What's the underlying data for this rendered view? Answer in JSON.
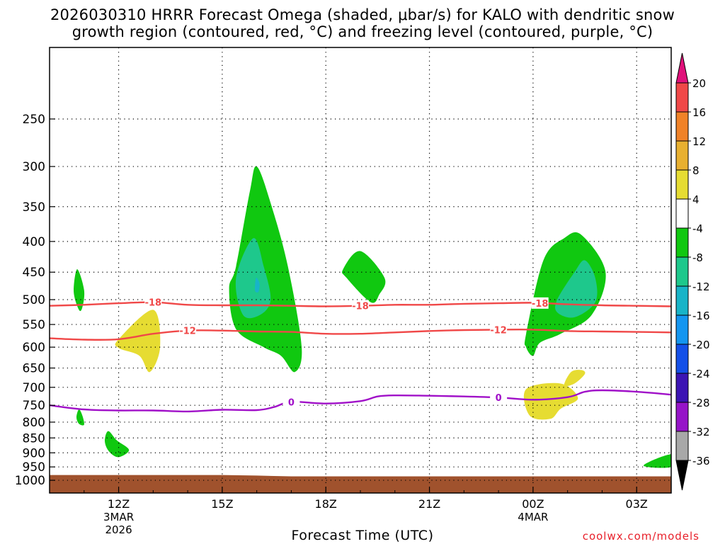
{
  "title": {
    "line1": "2026030310 HRRR Forecast Omega (shaded, μbar/s) for KALO with dendritic snow",
    "line2": "growth region (contoured, red, °C) and freezing level (contoured, purple, °C)"
  },
  "credit": "coolwx.com/models",
  "chart_data": {
    "type": "area",
    "title": "2026030310 HRRR Forecast Omega (shaded, μbar/s) for KALO with dendritic snow growth region (contoured, red, °C) and freezing level (contoured, purple, °C)",
    "xlabel": "Forecast Time (UTC)",
    "ylabel": "",
    "x_unit": "hours since 2026-03-03 10Z",
    "xlim": [
      0,
      18
    ],
    "y_scale": "log",
    "ylim": [
      1050,
      190
    ],
    "grid": true,
    "x_ticks": [
      {
        "hour": 2,
        "label": "12Z",
        "sub1": "3MAR",
        "sub2": "2026"
      },
      {
        "hour": 5,
        "label": "15Z",
        "sub1": "",
        "sub2": ""
      },
      {
        "hour": 8,
        "label": "18Z",
        "sub1": "",
        "sub2": ""
      },
      {
        "hour": 11,
        "label": "21Z",
        "sub1": "",
        "sub2": ""
      },
      {
        "hour": 14,
        "label": "00Z",
        "sub1": "4MAR",
        "sub2": ""
      },
      {
        "hour": 17,
        "label": "03Z",
        "sub1": "",
        "sub2": ""
      }
    ],
    "y_ticks": [
      250,
      300,
      350,
      400,
      450,
      500,
      550,
      600,
      650,
      700,
      750,
      800,
      850,
      900,
      950,
      1000
    ],
    "colorbar": {
      "labels": [
        "20",
        "16",
        "12",
        "8",
        "4",
        "-4",
        "-8",
        "-12",
        "-16",
        "-20",
        "-24",
        "-28",
        "-32",
        "-36"
      ],
      "bins": [
        {
          "lo": 20,
          "hi": null,
          "color": "#e0107a"
        },
        {
          "lo": 16,
          "hi": 20,
          "color": "#f04848"
        },
        {
          "lo": 12,
          "hi": 16,
          "color": "#f08228"
        },
        {
          "lo": 8,
          "hi": 12,
          "color": "#e8b030"
        },
        {
          "lo": 4,
          "hi": 8,
          "color": "#e6dc32"
        },
        {
          "lo": -4,
          "hi": 4,
          "color": "#ffffff"
        },
        {
          "lo": -8,
          "hi": -4,
          "color": "#10c810"
        },
        {
          "lo": -12,
          "hi": -8,
          "color": "#1ec88c"
        },
        {
          "lo": -16,
          "hi": -12,
          "color": "#18b4c8"
        },
        {
          "lo": -20,
          "hi": -16,
          "color": "#1496f0"
        },
        {
          "lo": -24,
          "hi": -20,
          "color": "#1450e8"
        },
        {
          "lo": -28,
          "hi": -24,
          "color": "#3c14b4"
        },
        {
          "lo": -32,
          "hi": -28,
          "color": "#9614c8"
        },
        {
          "lo": -36,
          "hi": -32,
          "color": "#a8a8a8"
        },
        {
          "lo": null,
          "hi": -36,
          "color": "#000000"
        }
      ]
    },
    "series": [
      {
        "kind": "contour",
        "label": "-18",
        "color": "#f04848",
        "points": [
          [
            0,
            512
          ],
          [
            1,
            510
          ],
          [
            2,
            507
          ],
          [
            3,
            505
          ],
          [
            4,
            510
          ],
          [
            5,
            511
          ],
          [
            6,
            511
          ],
          [
            7,
            512
          ],
          [
            8,
            513
          ],
          [
            9,
            512
          ],
          [
            10,
            510
          ],
          [
            11,
            510
          ],
          [
            12,
            508
          ],
          [
            13,
            507
          ],
          [
            14,
            506
          ],
          [
            15,
            509
          ],
          [
            16,
            511
          ],
          [
            17,
            512
          ],
          [
            18,
            513
          ]
        ],
        "label_hours": [
          3,
          9,
          14.2
        ]
      },
      {
        "kind": "contour",
        "label": "-12",
        "color": "#f04848",
        "points": [
          [
            0,
            580
          ],
          [
            1,
            583
          ],
          [
            2,
            582
          ],
          [
            3,
            570
          ],
          [
            4,
            563
          ],
          [
            5,
            563
          ],
          [
            6,
            565
          ],
          [
            7,
            566
          ],
          [
            8,
            570
          ],
          [
            9,
            570
          ],
          [
            10,
            567
          ],
          [
            11,
            564
          ],
          [
            12,
            562
          ],
          [
            13,
            561
          ],
          [
            14,
            561
          ],
          [
            15,
            564
          ],
          [
            16,
            565
          ],
          [
            17,
            566
          ],
          [
            18,
            567
          ]
        ],
        "label_hours": [
          4,
          13
        ]
      },
      {
        "kind": "contour",
        "label": "0",
        "color": "#a010c8",
        "points": [
          [
            0,
            750
          ],
          [
            1,
            762
          ],
          [
            2,
            765
          ],
          [
            3,
            765
          ],
          [
            4,
            768
          ],
          [
            5,
            763
          ],
          [
            6,
            764
          ],
          [
            6.5,
            755
          ],
          [
            7,
            740
          ],
          [
            8,
            745
          ],
          [
            9,
            738
          ],
          [
            9.5,
            725
          ],
          [
            10,
            722
          ],
          [
            11,
            723
          ],
          [
            12,
            725
          ],
          [
            13,
            728
          ],
          [
            14,
            734
          ],
          [
            15,
            727
          ],
          [
            15.5,
            712
          ],
          [
            16,
            708
          ],
          [
            17,
            712
          ],
          [
            18,
            720
          ]
        ],
        "label_hours": [
          7,
          13
        ]
      }
    ],
    "shaded_regions": [
      {
        "bin": "-8",
        "color": "#10c810",
        "points": [
          [
            0.8,
            445
          ],
          [
            1.0,
            482
          ],
          [
            0.95,
            515
          ],
          [
            0.85,
            520
          ],
          [
            0.7,
            485
          ]
        ]
      },
      {
        "bin": "-8",
        "color": "#10c810",
        "points": [
          [
            0.85,
            762
          ],
          [
            0.95,
            780
          ],
          [
            1.0,
            808
          ],
          [
            0.85,
            805
          ],
          [
            0.78,
            785
          ]
        ]
      },
      {
        "bin": "-8",
        "color": "#10c810",
        "points": [
          [
            1.7,
            828
          ],
          [
            1.95,
            858
          ],
          [
            2.3,
            890
          ],
          [
            2.0,
            915
          ],
          [
            1.72,
            895
          ],
          [
            1.6,
            860
          ]
        ]
      },
      {
        "bin": "4",
        "color": "#e6dc32",
        "points": [
          [
            2.0,
            582
          ],
          [
            3.0,
            520
          ],
          [
            3.2,
            600
          ],
          [
            2.9,
            660
          ],
          [
            2.6,
            620
          ],
          [
            2.0,
            602
          ]
        ]
      },
      {
        "bin": "-8",
        "color": "#10c810",
        "points": [
          [
            5.4,
            440
          ],
          [
            5.8,
            330
          ],
          [
            6.0,
            300
          ],
          [
            6.4,
            345
          ],
          [
            6.9,
            440
          ],
          [
            7.3,
            600
          ],
          [
            7.1,
            660
          ],
          [
            6.7,
            620
          ],
          [
            6.2,
            600
          ],
          [
            5.4,
            560
          ],
          [
            5.2,
            480
          ]
        ]
      },
      {
        "bin": "-12",
        "color": "#1ec88c",
        "points": [
          [
            5.4,
            460
          ],
          [
            5.9,
            395
          ],
          [
            6.2,
            440
          ],
          [
            6.4,
            500
          ],
          [
            6.1,
            530
          ],
          [
            5.6,
            530
          ]
        ]
      },
      {
        "bin": "-16",
        "color": "#18b4c8",
        "points": [
          [
            5.98,
            460
          ],
          [
            6.08,
            470
          ],
          [
            6.05,
            485
          ],
          [
            5.95,
            483
          ]
        ]
      },
      {
        "bin": "-8",
        "color": "#10c810",
        "points": [
          [
            8.5,
            445
          ],
          [
            9.0,
            415
          ],
          [
            9.7,
            460
          ],
          [
            9.55,
            490
          ],
          [
            9.3,
            505
          ],
          [
            8.6,
            460
          ]
        ]
      },
      {
        "bin": "-8",
        "color": "#10c810",
        "points": [
          [
            13.8,
            570
          ],
          [
            14.3,
            430
          ],
          [
            14.9,
            395
          ],
          [
            15.4,
            390
          ],
          [
            16.1,
            450
          ],
          [
            15.7,
            530
          ],
          [
            14.8,
            570
          ],
          [
            14.2,
            590
          ],
          [
            14.0,
            620
          ],
          [
            13.8,
            600
          ]
        ]
      },
      {
        "bin": "-12",
        "color": "#1ec88c",
        "points": [
          [
            14.7,
            500
          ],
          [
            15.2,
            450
          ],
          [
            15.5,
            430
          ],
          [
            15.8,
            460
          ],
          [
            15.8,
            505
          ],
          [
            15.2,
            535
          ],
          [
            14.7,
            525
          ]
        ]
      },
      {
        "bin": "4",
        "color": "#e6dc32",
        "points": [
          [
            13.8,
            705
          ],
          [
            14.8,
            690
          ],
          [
            15.3,
            730
          ],
          [
            14.8,
            760
          ],
          [
            14.5,
            790
          ],
          [
            13.9,
            780
          ]
        ]
      },
      {
        "bin": "4",
        "color": "#e6dc32",
        "points": [
          [
            14.9,
            695
          ],
          [
            15.1,
            660
          ],
          [
            15.4,
            655
          ],
          [
            15.5,
            665
          ],
          [
            15.2,
            690
          ]
        ]
      },
      {
        "bin": "-8",
        "color": "#10c810",
        "points": [
          [
            17.2,
            945
          ],
          [
            18.0,
            905
          ],
          [
            18.0,
            950
          ]
        ]
      }
    ],
    "terrain": {
      "color": "#a0522d",
      "surface_pressure": [
        [
          0,
          980
        ],
        [
          3,
          980
        ],
        [
          5,
          980
        ],
        [
          6,
          982
        ],
        [
          7,
          985
        ],
        [
          18,
          985
        ]
      ]
    }
  }
}
